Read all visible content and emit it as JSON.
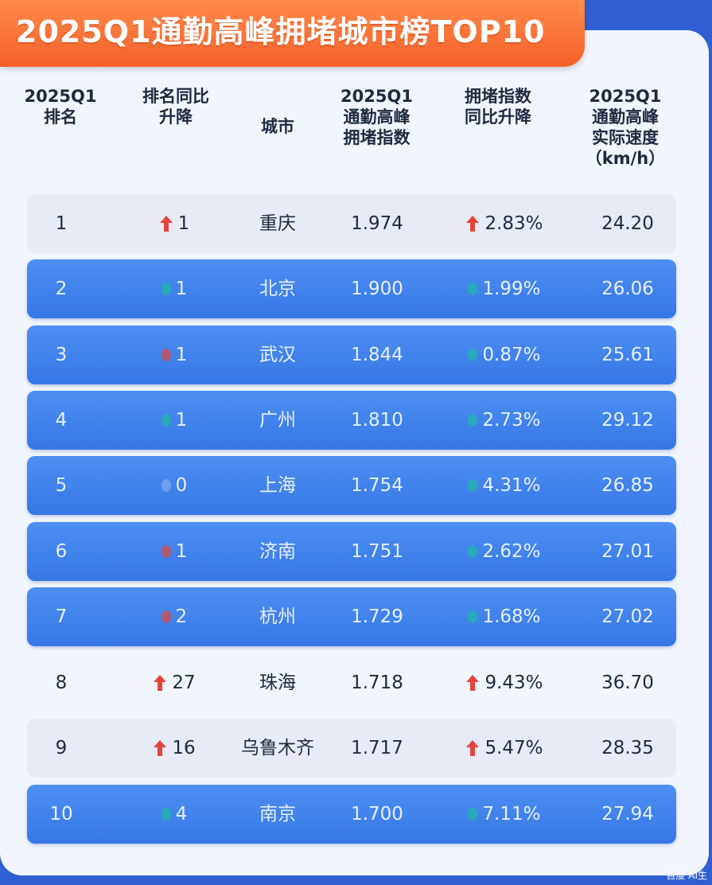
{
  "title": "2025Q1通勤高峰拥堵城市榜TOP10",
  "header": {
    "rank": [
      "2025Q1",
      "排名"
    ],
    "rank_change": [
      "排名同比",
      "升降"
    ],
    "city": [
      "城市"
    ],
    "index": [
      "2025Q1",
      "通勤高峰",
      "拥堵指数"
    ],
    "index_change": [
      "拥堵指数",
      "同比升降"
    ],
    "speed": [
      "2025Q1",
      "通勤高峰",
      "实际速度",
      "（km/h）"
    ]
  },
  "colors": {
    "up": "#e5423b",
    "down_dot": "#1fb8a8",
    "rank_down_dot": "#d94a4a",
    "flat_dot": "#7fa7ee"
  },
  "chart_data": {
    "type": "table",
    "title": "2025Q1通勤高峰拥堵城市榜TOP10",
    "columns": [
      "2025Q1排名",
      "排名同比升降",
      "城市",
      "2025Q1通勤高峰拥堵指数",
      "拥堵指数同比升降",
      "2025Q1通勤高峰实际速度（km/h）"
    ],
    "rows": [
      {
        "rank": "1",
        "rank_change": "1",
        "rank_dir": "up",
        "city": "重庆",
        "index": "1.974",
        "index_change": "2.83%",
        "index_dir": "up",
        "speed": "24.20",
        "style": "light"
      },
      {
        "rank": "2",
        "rank_change": "1",
        "rank_dir": "down",
        "city": "北京",
        "index": "1.900",
        "index_change": "1.99%",
        "index_dir": "down",
        "speed": "26.06",
        "style": "blue"
      },
      {
        "rank": "3",
        "rank_change": "1",
        "rank_dir": "fall",
        "city": "武汉",
        "index": "1.844",
        "index_change": "0.87%",
        "index_dir": "down",
        "speed": "25.61",
        "style": "blue"
      },
      {
        "rank": "4",
        "rank_change": "1",
        "rank_dir": "down",
        "city": "广州",
        "index": "1.810",
        "index_change": "2.73%",
        "index_dir": "down",
        "speed": "29.12",
        "style": "blue"
      },
      {
        "rank": "5",
        "rank_change": "0",
        "rank_dir": "flat",
        "city": "上海",
        "index": "1.754",
        "index_change": "4.31%",
        "index_dir": "down",
        "speed": "26.85",
        "style": "blue"
      },
      {
        "rank": "6",
        "rank_change": "1",
        "rank_dir": "fall",
        "city": "济南",
        "index": "1.751",
        "index_change": "2.62%",
        "index_dir": "down",
        "speed": "27.01",
        "style": "blue"
      },
      {
        "rank": "7",
        "rank_change": "2",
        "rank_dir": "fall",
        "city": "杭州",
        "index": "1.729",
        "index_change": "1.68%",
        "index_dir": "down",
        "speed": "27.02",
        "style": "blue"
      },
      {
        "rank": "8",
        "rank_change": "27",
        "rank_dir": "up",
        "city": "珠海",
        "index": "1.718",
        "index_change": "9.43%",
        "index_dir": "up",
        "speed": "36.70",
        "style": "white"
      },
      {
        "rank": "9",
        "rank_change": "16",
        "rank_dir": "up",
        "city": "乌鲁木齐",
        "index": "1.717",
        "index_change": "5.47%",
        "index_dir": "up",
        "speed": "28.35",
        "style": "light"
      },
      {
        "rank": "10",
        "rank_change": "4",
        "rank_dir": "down",
        "city": "南京",
        "index": "1.700",
        "index_change": "7.11%",
        "index_dir": "down",
        "speed": "27.94",
        "style": "blue"
      }
    ]
  },
  "watermark": "百度 AI生"
}
